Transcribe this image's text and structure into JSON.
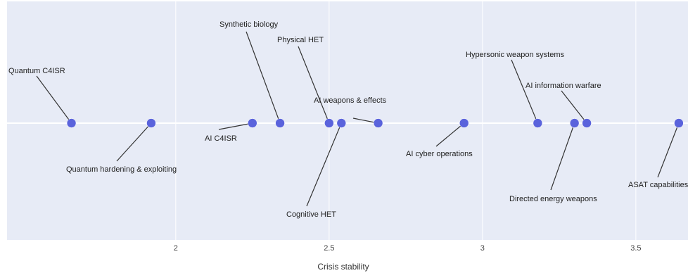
{
  "chart_data": {
    "type": "scatter",
    "title": "",
    "xlabel": "Crisis stability",
    "ylabel": "",
    "xlim": [
      1.45,
      3.67
    ],
    "x_ticks": [
      "2",
      "2.5",
      "3",
      "3.5"
    ],
    "grid": true,
    "background": "#e7ebf6",
    "marker_color": "#5a63dc",
    "points": [
      {
        "label": "Quantum C4ISR",
        "x": 1.66
      },
      {
        "label": "Quantum hardening & exploiting",
        "x": 1.92
      },
      {
        "label": "AI C4ISR",
        "x": 2.25
      },
      {
        "label": "Synthetic biology",
        "x": 2.34
      },
      {
        "label": "Physical HET",
        "x": 2.5
      },
      {
        "label": "Cognitive HET",
        "x": 2.54
      },
      {
        "label": "AI weapons & effects",
        "x": 2.66
      },
      {
        "label": "AI cyber operations",
        "x": 2.94
      },
      {
        "label": "Hypersonic weapon systems",
        "x": 3.18
      },
      {
        "label": "Directed energy weapons",
        "x": 3.3
      },
      {
        "label": "AI information warfare",
        "x": 3.34
      },
      {
        "label": "ASAT capabilities",
        "x": 3.64
      }
    ]
  }
}
